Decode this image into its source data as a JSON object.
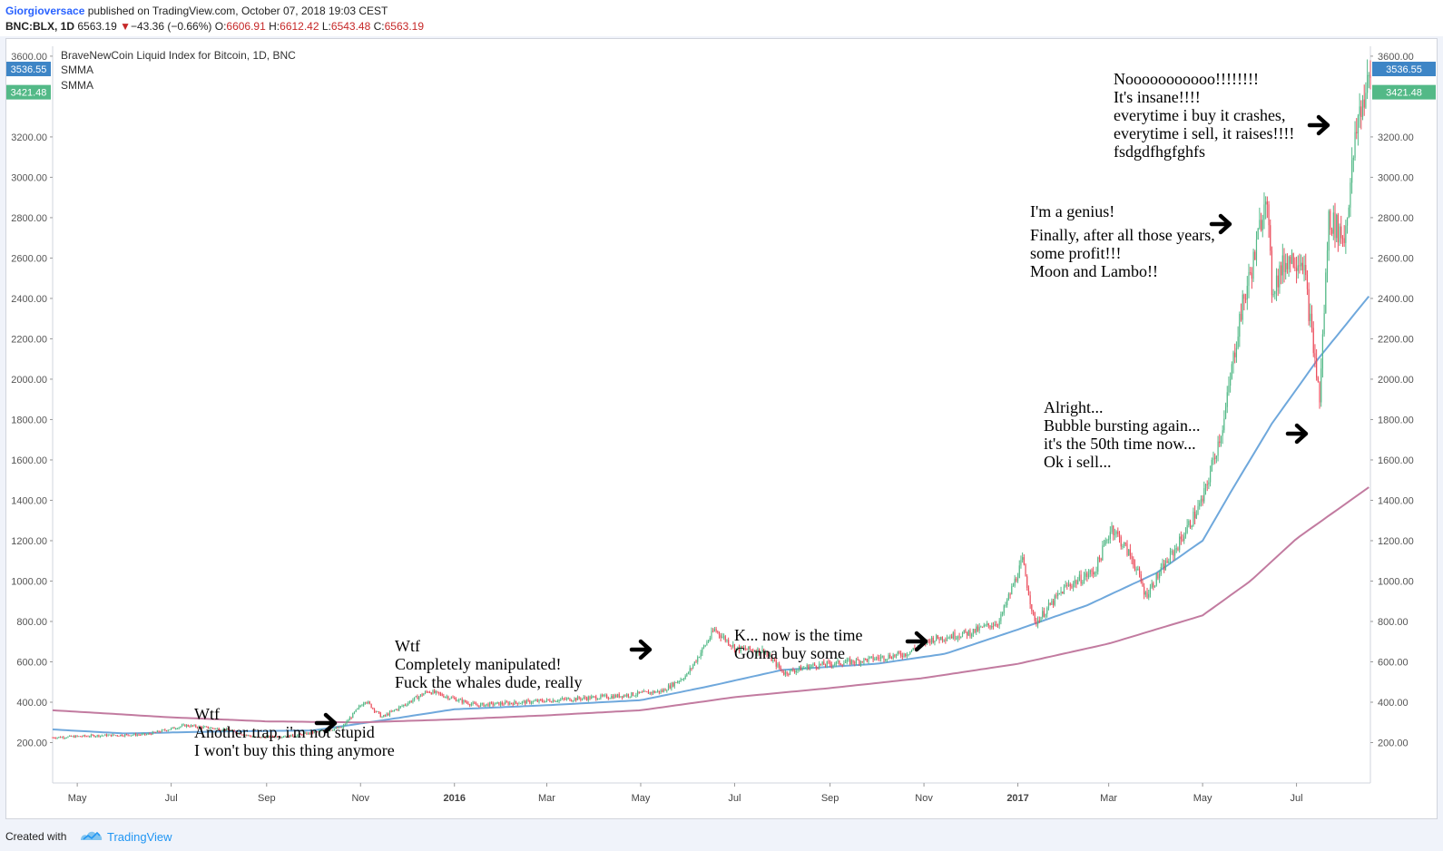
{
  "header": {
    "author": "Giorgioversace",
    "published": "published on TradingView.com, October 07, 2018 19:03 CEST",
    "symbol": "BNC:BLX, 1D",
    "last": "6563.19",
    "change_arrow": "▼",
    "change": "−43.36 (−0.66%)",
    "o_label": "O:",
    "o_value": "6606.91",
    "h_label": "H:",
    "h_value": "6612.42",
    "l_label": "L:",
    "l_value": "6543.48",
    "c_label": "C:",
    "c_value": "6563.19"
  },
  "legend": {
    "title": "BraveNewCoin Liquid Index for Bitcoin, 1D, BNC",
    "ind1": "SMMA",
    "ind2": "SMMA"
  },
  "badges": {
    "blue_value": "3536.55",
    "green_value": "3421.48"
  },
  "colors": {
    "up": "#53b987",
    "down": "#eb4d5c",
    "smma_fast": "#6fa8dc",
    "smma_slow": "#c27ba0",
    "badge_blue": "#3d85c6",
    "badge_green": "#53b987"
  },
  "footer": {
    "created_with": "Created with",
    "brand": "TradingView"
  },
  "chart_data": {
    "type": "candlestick",
    "interval": "1D",
    "y_scale": "linear",
    "ylim": [
      0,
      3640
    ],
    "y_ticks": [
      "200.00",
      "400.00",
      "600.00",
      "800.00",
      "1000.00",
      "1200.00",
      "1400.00",
      "1600.00",
      "1800.00",
      "2000.00",
      "2200.00",
      "2400.00",
      "2600.00",
      "2800.00",
      "3000.00",
      "3200.00",
      "3600.00"
    ],
    "x_range": [
      "2015-04-15",
      "2017-08-18"
    ],
    "x_ticks": [
      {
        "label": "May",
        "date": "2015-05-01",
        "bold": false
      },
      {
        "label": "Jul",
        "date": "2015-07-01",
        "bold": false
      },
      {
        "label": "Sep",
        "date": "2015-09-01",
        "bold": false
      },
      {
        "label": "Nov",
        "date": "2015-11-01",
        "bold": false
      },
      {
        "label": "2016",
        "date": "2016-01-01",
        "bold": true
      },
      {
        "label": "Mar",
        "date": "2016-03-01",
        "bold": false
      },
      {
        "label": "May",
        "date": "2016-05-01",
        "bold": false
      },
      {
        "label": "Jul",
        "date": "2016-07-01",
        "bold": false
      },
      {
        "label": "Sep",
        "date": "2016-09-01",
        "bold": false
      },
      {
        "label": "Nov",
        "date": "2016-11-01",
        "bold": false
      },
      {
        "label": "2017",
        "date": "2017-01-01",
        "bold": true
      },
      {
        "label": "Mar",
        "date": "2017-03-01",
        "bold": false
      },
      {
        "label": "May",
        "date": "2017-05-01",
        "bold": false
      },
      {
        "label": "Jul",
        "date": "2017-07-01",
        "bold": false
      }
    ],
    "price_anchors": [
      [
        "2015-04-15",
        225
      ],
      [
        "2015-05-15",
        235
      ],
      [
        "2015-06-15",
        240
      ],
      [
        "2015-07-10",
        285
      ],
      [
        "2015-08-05",
        265
      ],
      [
        "2015-08-25",
        225
      ],
      [
        "2015-09-20",
        235
      ],
      [
        "2015-10-20",
        275
      ],
      [
        "2015-11-04",
        410
      ],
      [
        "2015-11-15",
        325
      ],
      [
        "2015-12-15",
        455
      ],
      [
        "2016-01-15",
        385
      ],
      [
        "2016-02-15",
        400
      ],
      [
        "2016-03-15",
        415
      ],
      [
        "2016-04-15",
        430
      ],
      [
        "2016-05-15",
        455
      ],
      [
        "2016-05-31",
        535
      ],
      [
        "2016-06-18",
        760
      ],
      [
        "2016-07-02",
        665
      ],
      [
        "2016-07-20",
        655
      ],
      [
        "2016-08-02",
        545
      ],
      [
        "2016-08-20",
        580
      ],
      [
        "2016-09-20",
        605
      ],
      [
        "2016-10-20",
        640
      ],
      [
        "2016-11-05",
        710
      ],
      [
        "2016-12-01",
        745
      ],
      [
        "2016-12-20",
        800
      ],
      [
        "2017-01-04",
        1100
      ],
      [
        "2017-01-12",
        790
      ],
      [
        "2017-02-01",
        970
      ],
      [
        "2017-02-20",
        1050
      ],
      [
        "2017-03-03",
        1270
      ],
      [
        "2017-03-17",
        1100
      ],
      [
        "2017-03-25",
        930
      ],
      [
        "2017-04-15",
        1180
      ],
      [
        "2017-05-01",
        1400
      ],
      [
        "2017-05-15",
        1800
      ],
      [
        "2017-05-25",
        2300
      ],
      [
        "2017-06-05",
        2650
      ],
      [
        "2017-06-11",
        2950
      ],
      [
        "2017-06-15",
        2450
      ],
      [
        "2017-06-25",
        2600
      ],
      [
        "2017-07-05",
        2600
      ],
      [
        "2017-07-16",
        1900
      ],
      [
        "2017-07-22",
        2800
      ],
      [
        "2017-08-01",
        2700
      ],
      [
        "2017-08-10",
        3300
      ],
      [
        "2017-08-18",
        3500
      ]
    ],
    "series": [
      {
        "name": "SMMA",
        "color": "#6fa8dc",
        "values": [
          [
            "2015-04-15",
            265
          ],
          [
            "2015-06-01",
            245
          ],
          [
            "2015-08-01",
            255
          ],
          [
            "2015-10-01",
            260
          ],
          [
            "2015-11-15",
            310
          ],
          [
            "2016-01-01",
            365
          ],
          [
            "2016-03-01",
            385
          ],
          [
            "2016-05-01",
            410
          ],
          [
            "2016-06-15",
            480
          ],
          [
            "2016-08-01",
            560
          ],
          [
            "2016-10-01",
            590
          ],
          [
            "2016-11-15",
            640
          ],
          [
            "2017-01-01",
            760
          ],
          [
            "2017-02-15",
            880
          ],
          [
            "2017-04-01",
            1040
          ],
          [
            "2017-05-01",
            1200
          ],
          [
            "2017-05-20",
            1450
          ],
          [
            "2017-06-15",
            1780
          ],
          [
            "2017-07-15",
            2100
          ],
          [
            "2017-08-18",
            2420
          ]
        ]
      },
      {
        "name": "SMMA",
        "color": "#c27ba0",
        "values": [
          [
            "2015-04-15",
            360
          ],
          [
            "2015-07-01",
            325
          ],
          [
            "2015-09-01",
            305
          ],
          [
            "2015-11-01",
            300
          ],
          [
            "2016-01-01",
            315
          ],
          [
            "2016-03-01",
            335
          ],
          [
            "2016-05-01",
            360
          ],
          [
            "2016-07-01",
            425
          ],
          [
            "2016-09-01",
            470
          ],
          [
            "2016-11-01",
            520
          ],
          [
            "2017-01-01",
            590
          ],
          [
            "2017-03-01",
            690
          ],
          [
            "2017-05-01",
            830
          ],
          [
            "2017-06-01",
            1000
          ],
          [
            "2017-07-01",
            1210
          ],
          [
            "2017-08-18",
            1470
          ]
        ]
      }
    ],
    "annotations": [
      {
        "lines": [
          "Wtf",
          "Another trap, i'm not stupid",
          "I won't buy this thing anymore"
        ]
      },
      {
        "lines": [
          "Wtf",
          "Completely manipulated!",
          "Fuck the whales dude, really"
        ]
      },
      {
        "lines": [
          "K... now is the time",
          "Gonna buy some"
        ]
      },
      {
        "lines": [
          "Alright...",
          "Bubble bursting again...",
          "it's the 50th time now...",
          "Ok i sell..."
        ]
      },
      {
        "lines": [
          "I'm a genius!",
          "Finally, after all those years,",
          "some profit!!!",
          "Moon and Lambo!!"
        ]
      },
      {
        "lines": [
          "Nooooooooooo!!!!!!!!",
          "It's insane!!!!",
          "everytime i buy it crashes,",
          "everytime i sell, it raises!!!!",
          "fsdgdfhgfghfs"
        ]
      }
    ]
  }
}
